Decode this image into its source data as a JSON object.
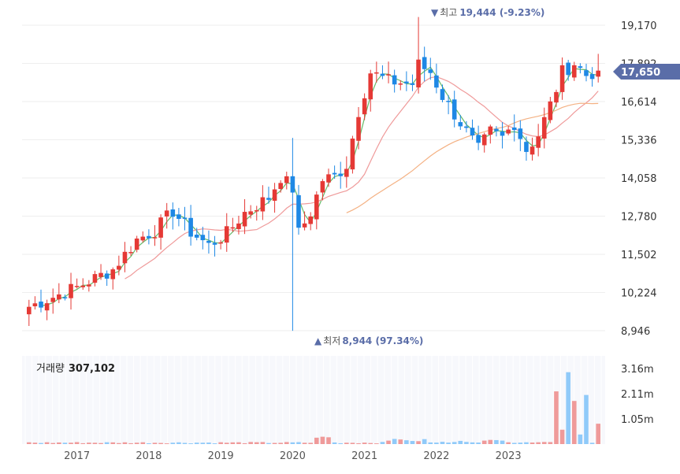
{
  "chart_data": {
    "type": "candlestick",
    "price_panel": {
      "y_ticks": [
        "19,170",
        "17,892",
        "16,614",
        "15,336",
        "14,058",
        "12,780",
        "11,502",
        "10,224",
        "8,946"
      ],
      "y_tick_values": [
        19170,
        17892,
        16614,
        15336,
        14058,
        12780,
        11502,
        10224,
        8946
      ],
      "ylim": [
        8946,
        19170
      ],
      "current_price_label": "17,650",
      "current_price": 17650,
      "high_annotation": {
        "marker": "▼",
        "label": "최고",
        "value_text": "19,444 (-9.23%)",
        "value": 19444
      },
      "low_annotation": {
        "marker": "▲",
        "label": "최저",
        "value_text": "8,944 (97.34%)",
        "value": 8944
      },
      "colors": {
        "up": "#e53935",
        "down": "#1e88e5",
        "ma_short": "#66bb6a",
        "ma_mid": "#ef9a9a",
        "ma_long": "#f4b183",
        "price_tag": "#5a6da8"
      }
    },
    "volume_panel": {
      "label": "거래량",
      "value": "307,102",
      "y_ticks": [
        "3.16m",
        "2.11m",
        "1.05m"
      ],
      "y_tick_values": [
        3.16,
        2.11,
        1.05
      ],
      "ylim": [
        0,
        3.68
      ]
    },
    "x_ticks": [
      "2017",
      "2018",
      "2019",
      "2020",
      "2021",
      "2022",
      "2023"
    ]
  }
}
